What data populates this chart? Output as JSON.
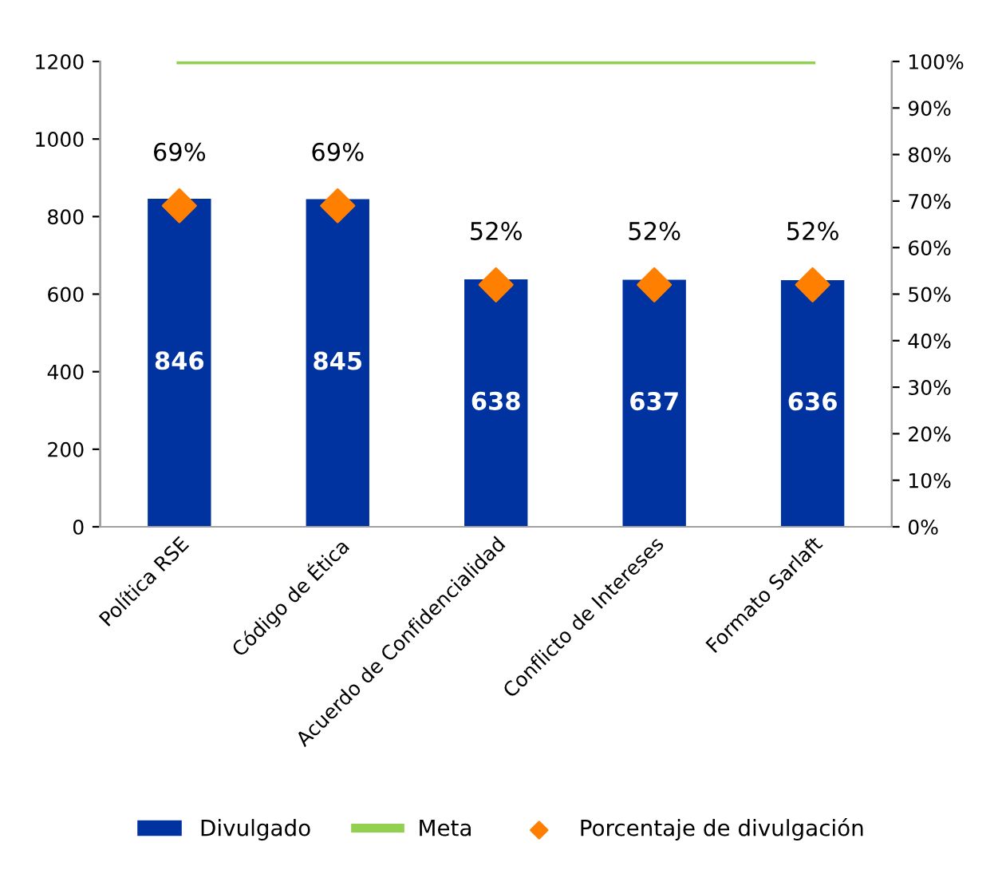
{
  "chart_data": {
    "type": "bar",
    "categories": [
      "Política RSE",
      "Código de Ética",
      "Acuerdo de Confidencialidad",
      "Conflicto de Intereses",
      "Formato Sarlaft"
    ],
    "series": [
      {
        "name": "Divulgado",
        "color": "#0033a0",
        "values": [
          846,
          845,
          638,
          637,
          636
        ],
        "data_labels": true
      },
      {
        "name": "Meta",
        "type": "line",
        "axis": "y2",
        "color": "#92d050",
        "values": [
          100,
          100,
          100,
          100,
          100
        ],
        "marker": "none"
      },
      {
        "name": "Porcentaje de divulgación",
        "type": "scatter",
        "axis": "y2",
        "color": "#ff7f00",
        "marker": "diamond",
        "values": [
          69,
          69,
          52,
          52,
          52
        ],
        "value_labels": [
          "69%",
          "69%",
          "52%",
          "52%",
          "52%"
        ]
      }
    ],
    "ylim": [
      0,
      1200
    ],
    "yticks": [
      0,
      200,
      400,
      600,
      800,
      1000,
      1200
    ],
    "y2lim": [
      0,
      100
    ],
    "y2ticks": [
      {
        "value": 0,
        "label": "0%"
      },
      {
        "value": 10,
        "label": "10%"
      },
      {
        "value": 20,
        "label": "20%"
      },
      {
        "value": 30,
        "label": "30%"
      },
      {
        "value": 40,
        "label": "40%"
      },
      {
        "value": 50,
        "label": "50%"
      },
      {
        "value": 60,
        "label": "60%"
      },
      {
        "value": 70,
        "label": "70%"
      },
      {
        "value": 80,
        "label": "80%"
      },
      {
        "value": 90,
        "label": "90%"
      },
      {
        "value": 100,
        "label": "100%"
      }
    ],
    "grid": false,
    "legend": "bottom"
  }
}
